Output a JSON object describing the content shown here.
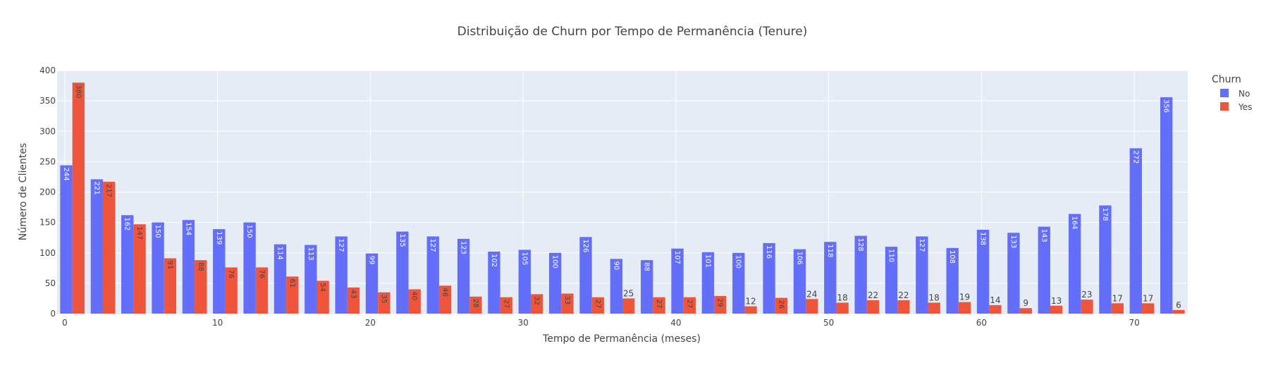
{
  "chart_data": {
    "type": "bar",
    "title": "Distribuição de Churn por Tempo de Permanência (Tenure)",
    "xlabel": "Tempo de Permanência (meses)",
    "ylabel": "Número de Clientes",
    "xlim": [
      -0.5,
      73.5
    ],
    "ylim": [
      0,
      400
    ],
    "x_ticks": [
      0,
      10,
      20,
      30,
      40,
      50,
      60,
      70
    ],
    "y_ticks": [
      0,
      50,
      100,
      150,
      200,
      250,
      300,
      350,
      400
    ],
    "grid": true,
    "legend_title": "Churn",
    "legend_position": "top-right",
    "x": [
      0.5,
      2.5,
      4.5,
      6.5,
      8.5,
      10.5,
      12.5,
      14.5,
      16.5,
      18.5,
      20.5,
      22.5,
      24.5,
      26.5,
      28.5,
      30.5,
      32.5,
      34.5,
      36.5,
      38.5,
      40.5,
      42.5,
      44.5,
      46.5,
      48.5,
      50.5,
      52.5,
      54.5,
      56.5,
      58.5,
      60.5,
      62.5,
      64.5,
      66.5,
      68.5,
      70.5,
      72.5
    ],
    "series": [
      {
        "name": "No",
        "color": "#636efa",
        "values": [
          244,
          221,
          162,
          150,
          154,
          139,
          150,
          114,
          113,
          127,
          99,
          135,
          127,
          123,
          102,
          105,
          100,
          126,
          90,
          88,
          107,
          101,
          100,
          116,
          106,
          118,
          128,
          110,
          127,
          108,
          138,
          133,
          143,
          164,
          178,
          272,
          356
        ]
      },
      {
        "name": "Yes",
        "color": "#ef553b",
        "values": [
          380,
          217,
          147,
          91,
          88,
          76,
          76,
          61,
          54,
          43,
          35,
          40,
          46,
          28,
          27,
          32,
          33,
          27,
          25,
          27,
          27,
          29,
          12,
          26,
          24,
          18,
          22,
          22,
          18,
          19,
          14,
          9,
          13,
          23,
          17,
          17,
          6
        ]
      }
    ]
  }
}
